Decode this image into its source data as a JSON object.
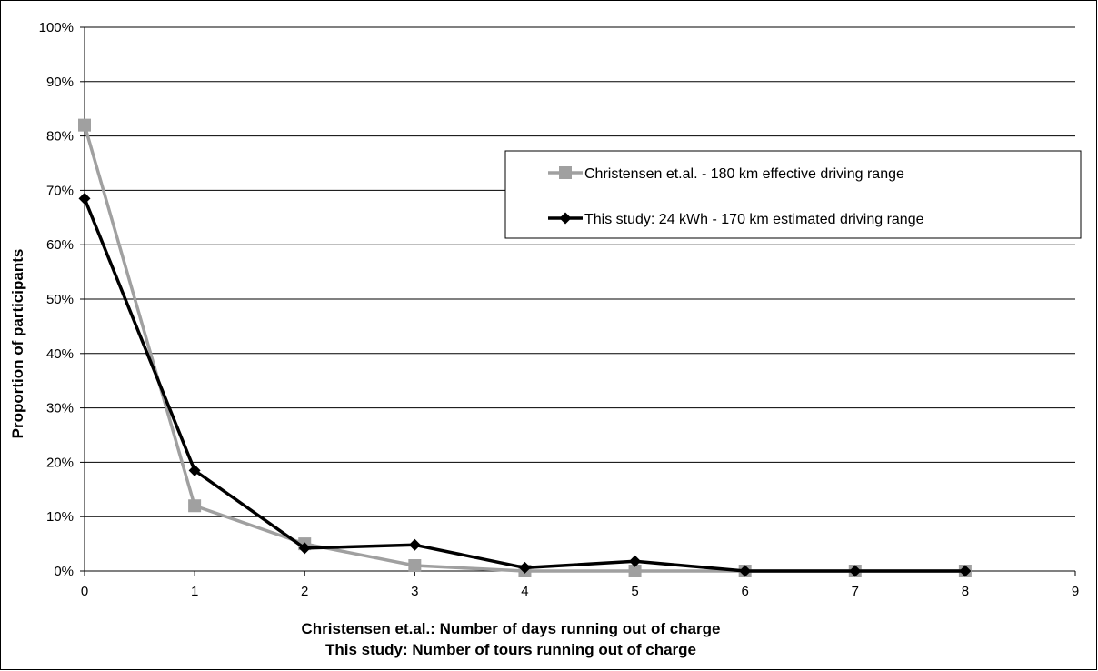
{
  "chart_data": {
    "type": "line",
    "title": "",
    "ylabel": "Proportion of participants",
    "xlabel_lines": [
      "Christensen et.al.: Number of days running out of charge",
      "This study: Number of tours running out of charge"
    ],
    "xlim": [
      0,
      9
    ],
    "ylim": [
      0,
      100
    ],
    "x_ticks": [
      "0",
      "1",
      "2",
      "3",
      "4",
      "5",
      "6",
      "7",
      "8",
      "9"
    ],
    "y_ticks": [
      "0%",
      "10%",
      "20%",
      "30%",
      "40%",
      "50%",
      "60%",
      "70%",
      "80%",
      "90%",
      "100%"
    ],
    "grid": "horizontal",
    "legend_position": "top-right",
    "series": [
      {
        "name": "Christensen et.al. - 180 km effective driving range",
        "color": "#a0a0a0",
        "marker": "square",
        "x": [
          0,
          1,
          2,
          3,
          4,
          5,
          6,
          7,
          8
        ],
        "values": [
          82,
          12,
          5,
          1,
          0,
          0,
          0,
          0,
          0
        ]
      },
      {
        "name": "This study: 24 kWh - 170 km estimated driving range",
        "color": "#000000",
        "marker": "diamond",
        "x": [
          0,
          1,
          2,
          3,
          4,
          5,
          6,
          7,
          8
        ],
        "values": [
          68.5,
          18.5,
          4.2,
          4.8,
          0.6,
          1.8,
          0,
          0,
          0
        ]
      }
    ]
  }
}
